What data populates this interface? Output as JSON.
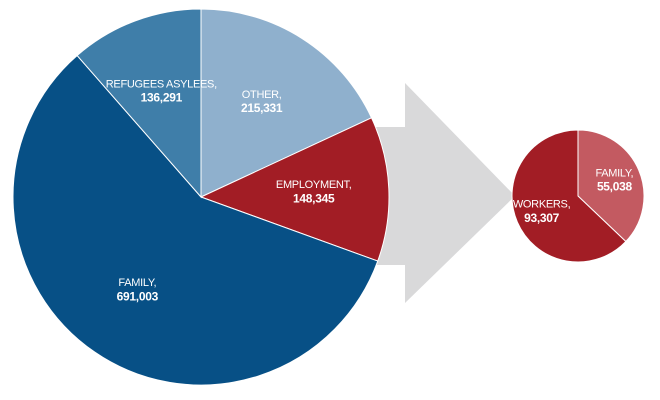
{
  "chart_data": [
    {
      "type": "pie",
      "categories": [
        "OTHER,",
        "EMPLOYMENT,",
        "FAMILY,",
        "REFUGEES ASYLEES,"
      ],
      "values": [
        215331,
        148345,
        691003,
        136291
      ],
      "value_labels": [
        "215,331",
        "148,345",
        "691,003",
        "136,291"
      ],
      "colors": [
        "#8fb0cd",
        "#a21d25",
        "#075086",
        "#3f7ea9"
      ]
    },
    {
      "type": "pie",
      "categories": [
        "FAMILY,",
        "WORKERS,"
      ],
      "values": [
        55038,
        93307
      ],
      "value_labels": [
        "55,038",
        "93,307"
      ],
      "colors": [
        "#c35a61",
        "#a21d25"
      ]
    }
  ]
}
